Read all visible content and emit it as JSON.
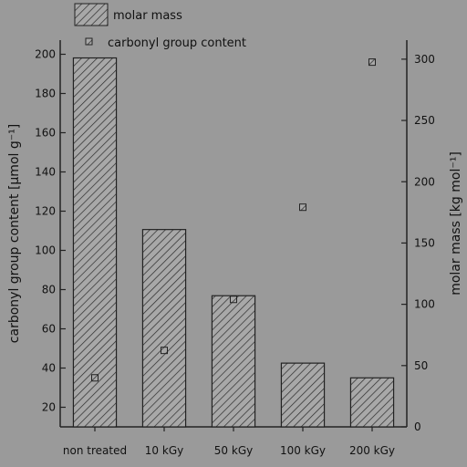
{
  "chart_data": {
    "type": "bar",
    "categories": [
      "non treated",
      "10 kGy",
      "50 kGy",
      "100 kGy",
      "200 kGy"
    ],
    "series": [
      {
        "name": "molar mass",
        "type": "bar",
        "axis": "right",
        "values": [
          301,
          161,
          107,
          52,
          40
        ]
      },
      {
        "name": "carbonyl group content",
        "type": "scatter",
        "axis": "left",
        "values": [
          35,
          49,
          75,
          122,
          196
        ]
      }
    ],
    "ylabel": "carbonyl group content [µmol g⁻¹]",
    "ylim": [
      10,
      210
    ],
    "yticks": [
      20,
      40,
      60,
      80,
      100,
      120,
      140,
      160,
      180,
      200
    ],
    "y2label": "molar mass [kg mol⁻¹]",
    "y2lim": [
      0,
      320
    ],
    "y2ticks": [
      0,
      50,
      100,
      150,
      200,
      250,
      300
    ],
    "legend_position": "top-left",
    "grid": false
  }
}
